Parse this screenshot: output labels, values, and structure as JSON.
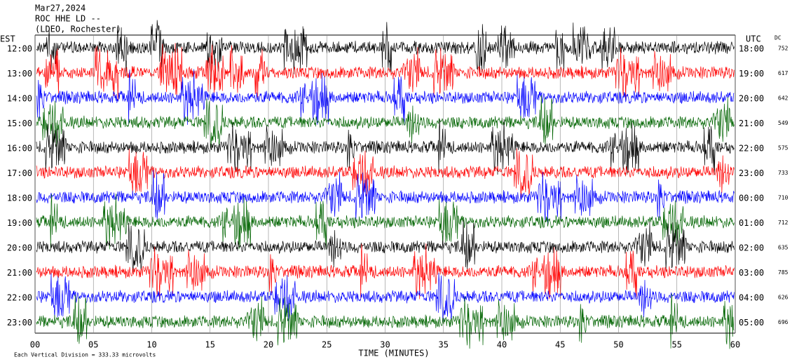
{
  "chart_data": {
    "type": "helicorder",
    "title_lines": [
      "Mar27,2024",
      "ROC HHE LD --",
      "(LDEO, Rochester)"
    ],
    "left_header": "EST",
    "right_header": "UTC",
    "dc_header": "DC",
    "xlabel": "TIME (MINUTES)",
    "note": "Each Vertical Division =  333.33 microvolts",
    "xlim": [
      0,
      60
    ],
    "xticks": [
      {
        "value": 0,
        "label": "00"
      },
      {
        "value": 5,
        "label": "05"
      },
      10,
      15,
      20,
      25,
      30,
      35,
      40,
      45,
      50,
      55,
      60
    ],
    "grid": true,
    "rows": [
      {
        "est": "12:00",
        "utc": "18:00",
        "dc": 752,
        "color": "#000000"
      },
      {
        "est": "13:00",
        "utc": "19:00",
        "dc": 617,
        "color": "#ff0000"
      },
      {
        "est": "14:00",
        "utc": "20:00",
        "dc": 642,
        "color": "#0000ff"
      },
      {
        "est": "15:00",
        "utc": "21:00",
        "dc": 549,
        "color": "#006400"
      },
      {
        "est": "16:00",
        "utc": "22:00",
        "dc": 575,
        "color": "#000000"
      },
      {
        "est": "17:00",
        "utc": "23:00",
        "dc": 733,
        "color": "#ff0000"
      },
      {
        "est": "18:00",
        "utc": "00:00",
        "dc": 710,
        "color": "#0000ff"
      },
      {
        "est": "19:00",
        "utc": "01:00",
        "dc": 712,
        "color": "#006400"
      },
      {
        "est": "20:00",
        "utc": "02:00",
        "dc": 635,
        "color": "#000000"
      },
      {
        "est": "21:00",
        "utc": "03:00",
        "dc": 785,
        "color": "#ff0000"
      },
      {
        "est": "22:00",
        "utc": "04:00",
        "dc": 626,
        "color": "#0000ff"
      },
      {
        "est": "23:00",
        "utc": "05:00",
        "dc": 696,
        "color": "#006400"
      }
    ]
  }
}
